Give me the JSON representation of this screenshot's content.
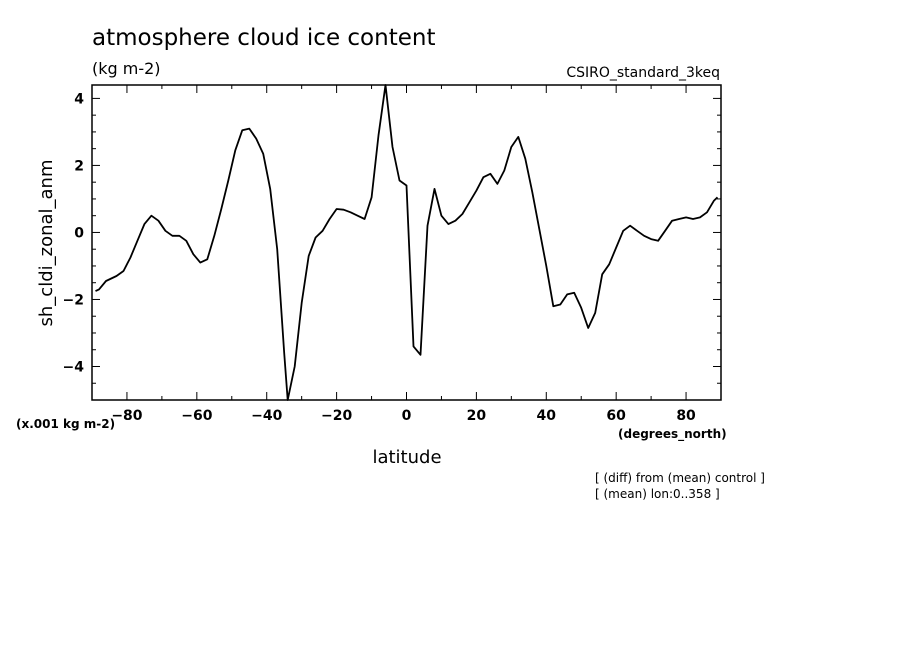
{
  "chart_data": {
    "type": "line",
    "title": "atmosphere cloud ice content",
    "units": "(kg m-2)",
    "model_label": "CSIRO_standard_3keq",
    "ylabel": "sh_cldi_zonal_anm",
    "y_scale_note": "(x.001 kg m-2)",
    "xlabel": "latitude",
    "x_unit": "(degrees_north)",
    "notes": [
      "[ (diff) from (mean) control ]",
      "[ (mean) lon:0..358 ]"
    ],
    "xlim": [
      -90,
      90
    ],
    "ylim": [
      -5,
      4.4
    ],
    "xticks": [
      -80,
      -60,
      -40,
      -20,
      0,
      20,
      40,
      60,
      80
    ],
    "yticks": [
      -4,
      -2,
      0,
      2,
      4
    ],
    "grid": false,
    "series": [
      {
        "x": [
          -89,
          -88,
          -86,
          -83,
          -81,
          -79,
          -77,
          -75,
          -73,
          -71,
          -69,
          -67,
          -65,
          -63,
          -61,
          -59,
          -57,
          -55,
          -53,
          -51,
          -49,
          -47,
          -45,
          -43,
          -41,
          -39,
          -37,
          -35,
          -34,
          -32,
          -30,
          -28,
          -26,
          -24,
          -22,
          -20,
          -18,
          -16,
          -14,
          -12,
          -10,
          -8,
          -6,
          -4,
          -2,
          0,
          2,
          4,
          6,
          8,
          10,
          12,
          14,
          16,
          18,
          20,
          22,
          24,
          26,
          28,
          30,
          32,
          34,
          36,
          38,
          40,
          42,
          44,
          46,
          48,
          50,
          52,
          54,
          56,
          58,
          60,
          62,
          64,
          66,
          68,
          70,
          72,
          74,
          76,
          78,
          80,
          82,
          84,
          86,
          88,
          89
        ],
        "y": [
          -1.75,
          -1.7,
          -1.45,
          -1.3,
          -1.15,
          -0.75,
          -0.25,
          0.25,
          0.5,
          0.35,
          0.05,
          -0.1,
          -0.1,
          -0.25,
          -0.65,
          -0.9,
          -0.8,
          -0.1,
          0.7,
          1.55,
          2.45,
          3.05,
          3.1,
          2.8,
          2.35,
          1.3,
          -0.5,
          -3.6,
          -5.0,
          -4.0,
          -2.1,
          -0.7,
          -0.15,
          0.05,
          0.4,
          0.7,
          0.68,
          0.6,
          0.5,
          0.4,
          1.05,
          2.9,
          4.4,
          2.55,
          1.55,
          1.4,
          -3.4,
          -3.65,
          0.2,
          1.3,
          0.5,
          0.25,
          0.35,
          0.55,
          0.9,
          1.25,
          1.65,
          1.75,
          1.45,
          1.85,
          2.55,
          2.85,
          2.2,
          1.2,
          0.1,
          -1.0,
          -2.2,
          -2.15,
          -1.85,
          -1.8,
          -2.25,
          -2.85,
          -2.4,
          -1.25,
          -0.95,
          -0.45,
          0.05,
          0.2,
          0.05,
          -0.1,
          -0.2,
          -0.25,
          0.05,
          0.35,
          0.4,
          0.45,
          0.4,
          0.45,
          0.6,
          0.95,
          1.05
        ]
      }
    ]
  }
}
